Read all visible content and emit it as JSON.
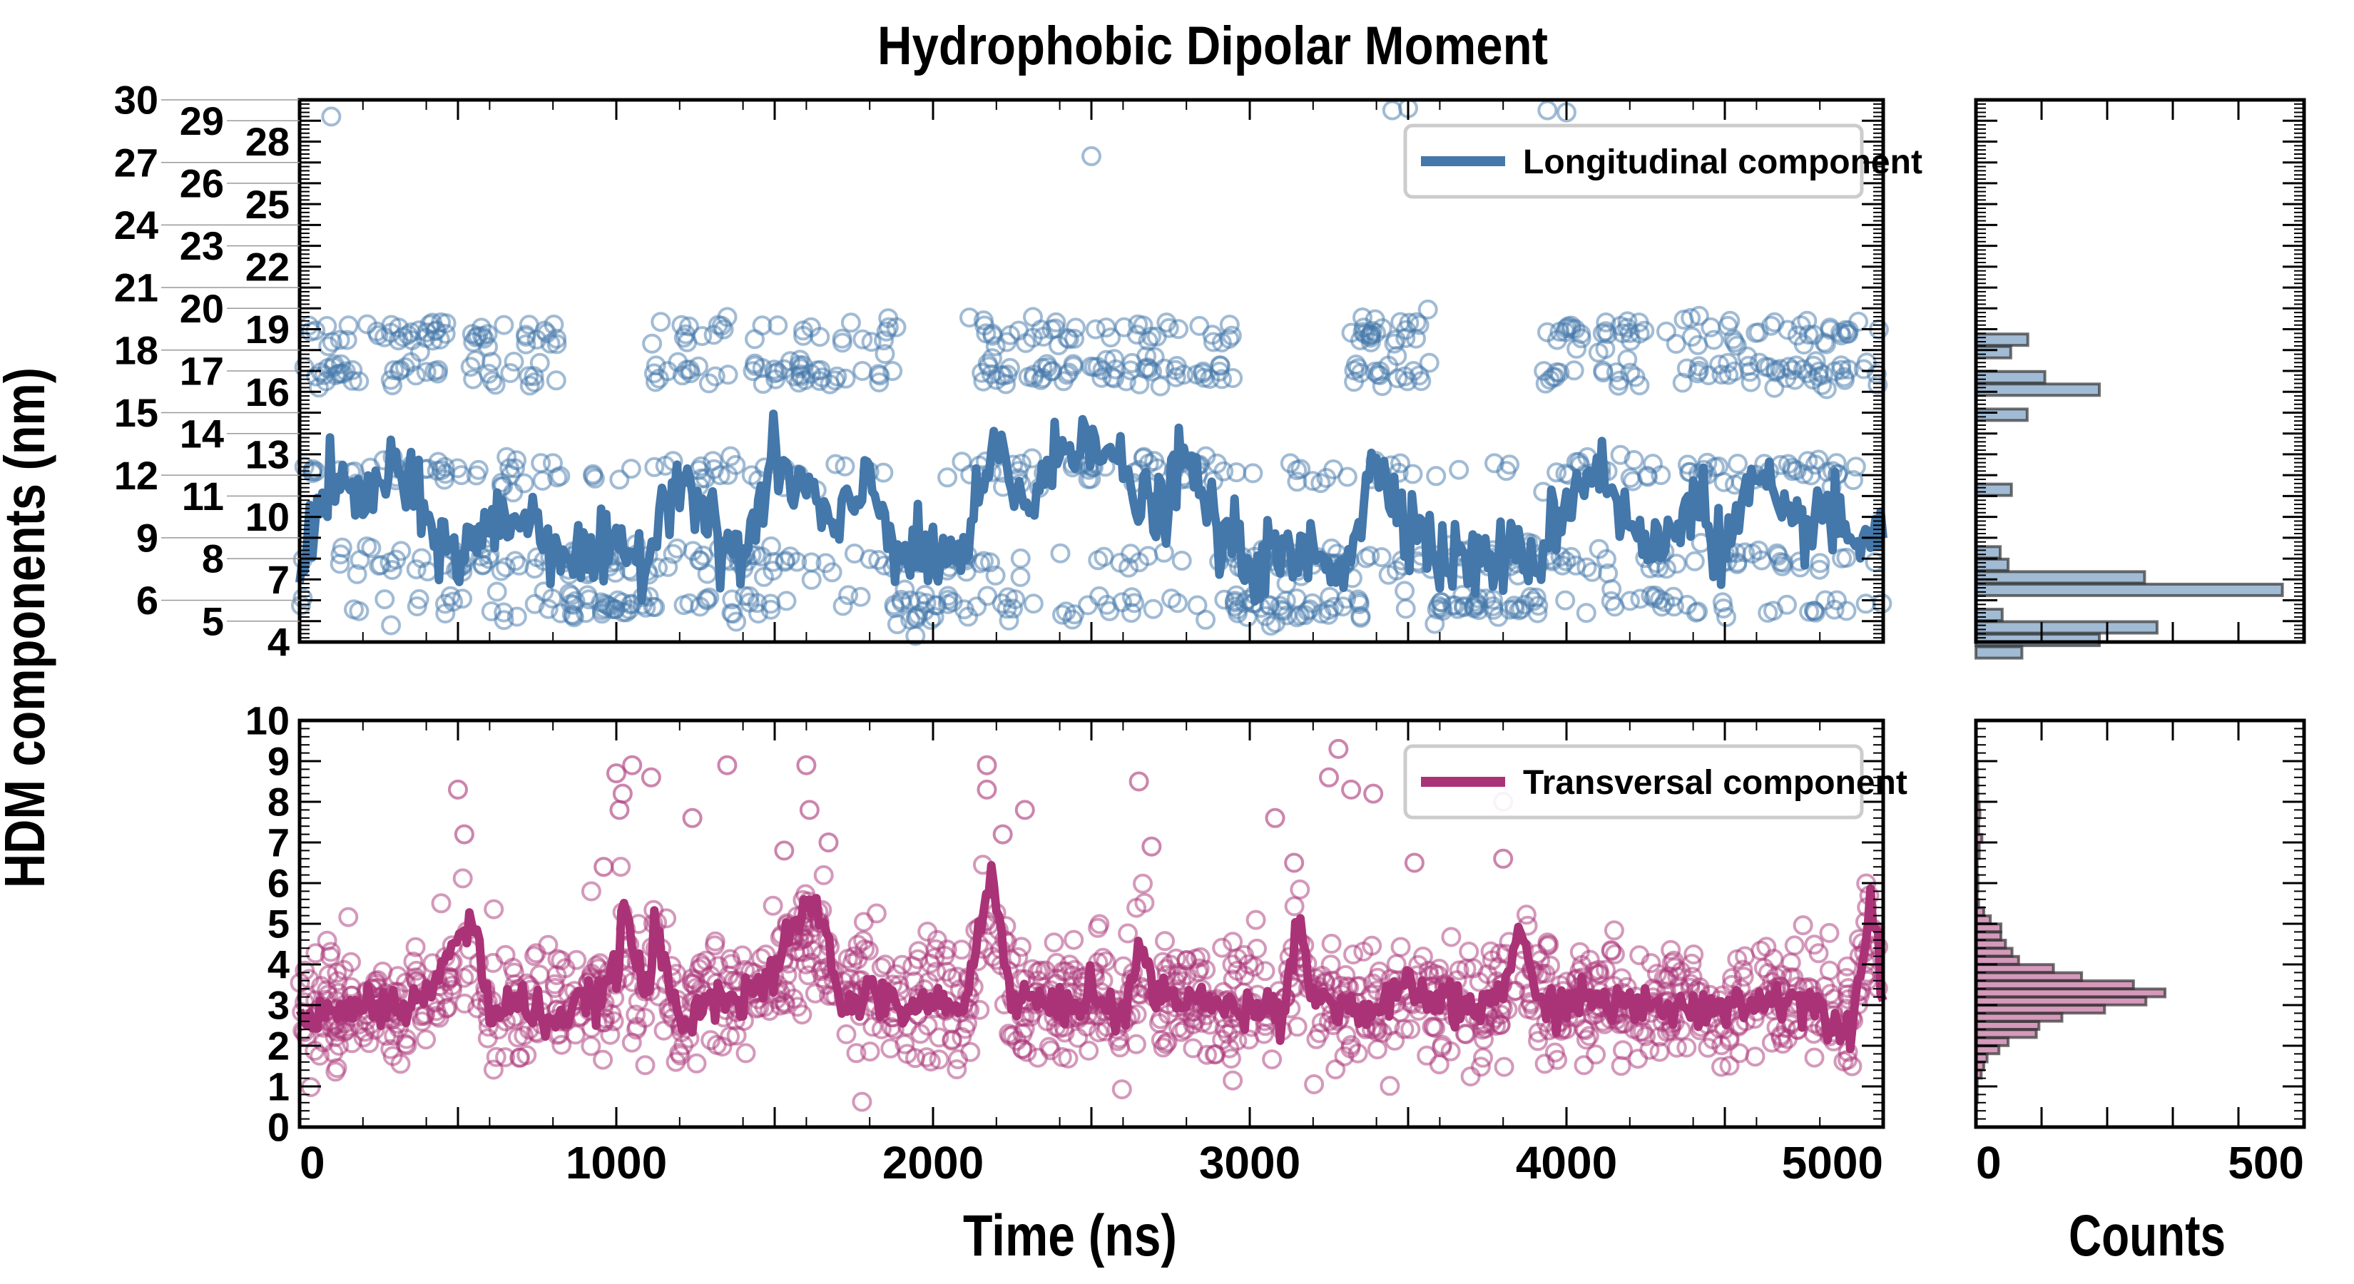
{
  "chart_data": [
    {
      "id": "longitudinal",
      "type": "line+scatter",
      "title": "Hydrophobic Dipolar Moment",
      "xlabel": "Time (ns)",
      "ylabel": "HDM components (nm)",
      "xlim": [
        0,
        5000
      ],
      "ylim": [
        4,
        30
      ],
      "x_ticks": [
        0,
        1000,
        2000,
        3000,
        4000,
        5000
      ],
      "y_ticks": [
        4,
        5,
        6,
        7,
        8,
        9,
        10,
        11,
        12,
        13,
        14,
        15,
        16,
        17,
        18,
        19,
        20,
        21,
        22,
        23,
        24,
        25,
        26,
        27,
        28,
        29,
        30
      ],
      "legend": {
        "label": "Longitudinal component",
        "position": "top-right"
      },
      "color": "#4477aa",
      "scatter_levels": [
        5.7,
        7.9,
        12.2,
        16.9,
        18.8
      ],
      "scatter_outliers": [
        [
          100,
          29.2
        ],
        [
          2500,
          27.3
        ],
        [
          3450,
          29.5
        ],
        [
          3500,
          29.6
        ],
        [
          3940,
          29.5
        ],
        [
          4000,
          29.4
        ]
      ],
      "running_mean": {
        "x": [
          0,
          100,
          200,
          300,
          400,
          500,
          600,
          700,
          800,
          900,
          1000,
          1100,
          1200,
          1300,
          1400,
          1500,
          1600,
          1700,
          1800,
          1900,
          2000,
          2100,
          2200,
          2300,
          2400,
          2500,
          2600,
          2700,
          2800,
          2900,
          3000,
          3100,
          3200,
          3300,
          3400,
          3500,
          3600,
          3700,
          3800,
          3900,
          4000,
          4100,
          4200,
          4300,
          4400,
          4500,
          4600,
          4700,
          4800,
          4900,
          5000
        ],
        "y": [
          8.2,
          11.5,
          10.8,
          12.3,
          9.8,
          8.1,
          9.5,
          10.2,
          8.9,
          7.9,
          8.0,
          8.3,
          12.8,
          9.2,
          8.1,
          12.5,
          11.3,
          9.0,
          12.0,
          8.0,
          7.9,
          8.2,
          13.2,
          10.5,
          12.9,
          14.5,
          11.8,
          9.9,
          12.7,
          9.3,
          7.8,
          7.9,
          8.2,
          7.8,
          12.6,
          10.2,
          8.0,
          7.9,
          8.1,
          7.9,
          10.8,
          12.7,
          9.3,
          8.2,
          11.4,
          8.3,
          11.9,
          9.0,
          10.5,
          8.6,
          9.7
        ]
      }
    },
    {
      "id": "transversal",
      "type": "line+scatter",
      "xlabel": "Time (ns)",
      "ylabel": "HDM components (nm)",
      "xlim": [
        0,
        5000
      ],
      "ylim": [
        0,
        10
      ],
      "x_ticks": [
        0,
        1000,
        2000,
        3000,
        4000,
        5000
      ],
      "y_ticks": [
        0,
        1,
        2,
        3,
        4,
        5,
        6,
        7,
        8,
        9,
        10
      ],
      "legend": {
        "label": "Transversal component",
        "position": "top-right"
      },
      "color": "#aa3377",
      "running_mean": {
        "x": [
          0,
          100,
          200,
          300,
          400,
          500,
          550,
          600,
          700,
          800,
          900,
          1000,
          1020,
          1100,
          1120,
          1200,
          1300,
          1400,
          1500,
          1600,
          1650,
          1700,
          1800,
          1900,
          2000,
          2100,
          2180,
          2250,
          2300,
          2400,
          2500,
          2600,
          2660,
          2700,
          2800,
          2900,
          3000,
          3100,
          3160,
          3200,
          3300,
          3400,
          3500,
          3600,
          3700,
          3800,
          3850,
          3900,
          4000,
          4100,
          4200,
          4300,
          4400,
          4500,
          4600,
          4700,
          4800,
          4900,
          4960,
          5000
        ],
        "y": [
          3.0,
          2.7,
          3.1,
          2.9,
          3.2,
          4.6,
          5.1,
          2.8,
          3.1,
          2.6,
          3.0,
          3.7,
          5.5,
          3.0,
          5.0,
          2.5,
          3.4,
          3.0,
          3.8,
          5.5,
          5.3,
          3.0,
          3.3,
          2.9,
          3.1,
          2.8,
          6.5,
          3.0,
          3.2,
          2.8,
          3.4,
          2.6,
          4.7,
          3.1,
          3.3,
          2.9,
          3.0,
          2.9,
          5.1,
          3.2,
          3.0,
          2.8,
          3.4,
          3.1,
          2.8,
          3.4,
          5.0,
          3.1,
          3.0,
          3.2,
          2.9,
          3.0,
          2.8,
          3.1,
          3.0,
          3.3,
          2.9,
          2.4,
          5.8,
          3.0
        ]
      },
      "scatter_center": 3.0,
      "scatter_outliers": [
        [
          500,
          8.3
        ],
        [
          520,
          7.2
        ],
        [
          960,
          6.4
        ],
        [
          1000,
          8.7
        ],
        [
          1010,
          7.8
        ],
        [
          1020,
          8.2
        ],
        [
          1050,
          8.9
        ],
        [
          1110,
          8.6
        ],
        [
          1240,
          7.6
        ],
        [
          1350,
          8.9
        ],
        [
          1530,
          6.8
        ],
        [
          1600,
          8.9
        ],
        [
          1610,
          7.8
        ],
        [
          1670,
          7.0
        ],
        [
          2170,
          8.9
        ],
        [
          2170,
          8.3
        ],
        [
          2220,
          7.2
        ],
        [
          2290,
          7.8
        ],
        [
          2650,
          8.5
        ],
        [
          2690,
          6.9
        ],
        [
          3080,
          7.6
        ],
        [
          3140,
          6.5
        ],
        [
          3250,
          8.6
        ],
        [
          3280,
          9.3
        ],
        [
          3320,
          8.3
        ],
        [
          3390,
          8.2
        ],
        [
          3520,
          6.5
        ],
        [
          3800,
          8.0
        ],
        [
          3800,
          6.6
        ]
      ]
    },
    {
      "id": "longitudinal-hist",
      "type": "bar",
      "orientation": "horizontal",
      "xlabel": "",
      "xlim": [
        0,
        500
      ],
      "x_ticks": [
        0,
        100,
        200,
        300,
        400,
        500
      ],
      "color": "#4477aa",
      "bins_center": [
        18.5,
        17.9,
        16.7,
        16.1,
        14.9,
        11.3,
        8.3,
        7.7,
        7.1,
        6.5,
        5.3,
        4.7,
        4.1,
        3.5
      ],
      "counts": [
        79,
        53,
        105,
        188,
        78,
        54,
        37,
        49,
        257,
        467,
        40,
        276,
        188,
        70
      ]
    },
    {
      "id": "transversal-hist",
      "type": "bar",
      "orientation": "horizontal",
      "xlabel": "Counts",
      "xlim": [
        0,
        500
      ],
      "x_ticks": [
        0,
        500
      ],
      "color": "#aa3377",
      "bins_center": [
        0.5,
        0.7,
        0.9,
        1.1,
        1.3,
        1.5,
        1.7,
        1.9,
        2.1,
        2.3,
        2.5,
        2.7,
        2.9,
        3.1,
        3.3,
        3.5,
        3.7,
        3.9,
        4.1,
        4.3,
        4.5,
        4.7,
        4.9,
        5.1,
        5.3,
        5.5,
        5.7,
        5.9,
        6.1,
        6.3,
        6.5,
        6.7,
        6.9,
        7.1,
        7.3,
        7.5,
        7.7,
        7.9,
        8.1,
        8.3,
        8.5,
        8.7,
        8.9
      ],
      "counts": [
        0,
        2,
        2,
        2,
        8,
        12,
        17,
        35,
        49,
        92,
        96,
        131,
        196,
        259,
        288,
        240,
        161,
        118,
        65,
        55,
        45,
        38,
        38,
        22,
        12,
        4,
        2,
        3,
        3,
        2,
        2,
        5,
        5,
        9,
        4,
        4,
        6,
        5,
        3,
        3,
        3,
        2,
        2
      ]
    }
  ],
  "labels": {
    "title": "Hydrophobic Dipolar Moment",
    "xlabel_main": "Time (ns)",
    "xlabel_hist": "Counts",
    "ylabel": "HDM components (nm)",
    "legend_top": "Longitudinal component",
    "legend_bottom": "Transversal component"
  }
}
